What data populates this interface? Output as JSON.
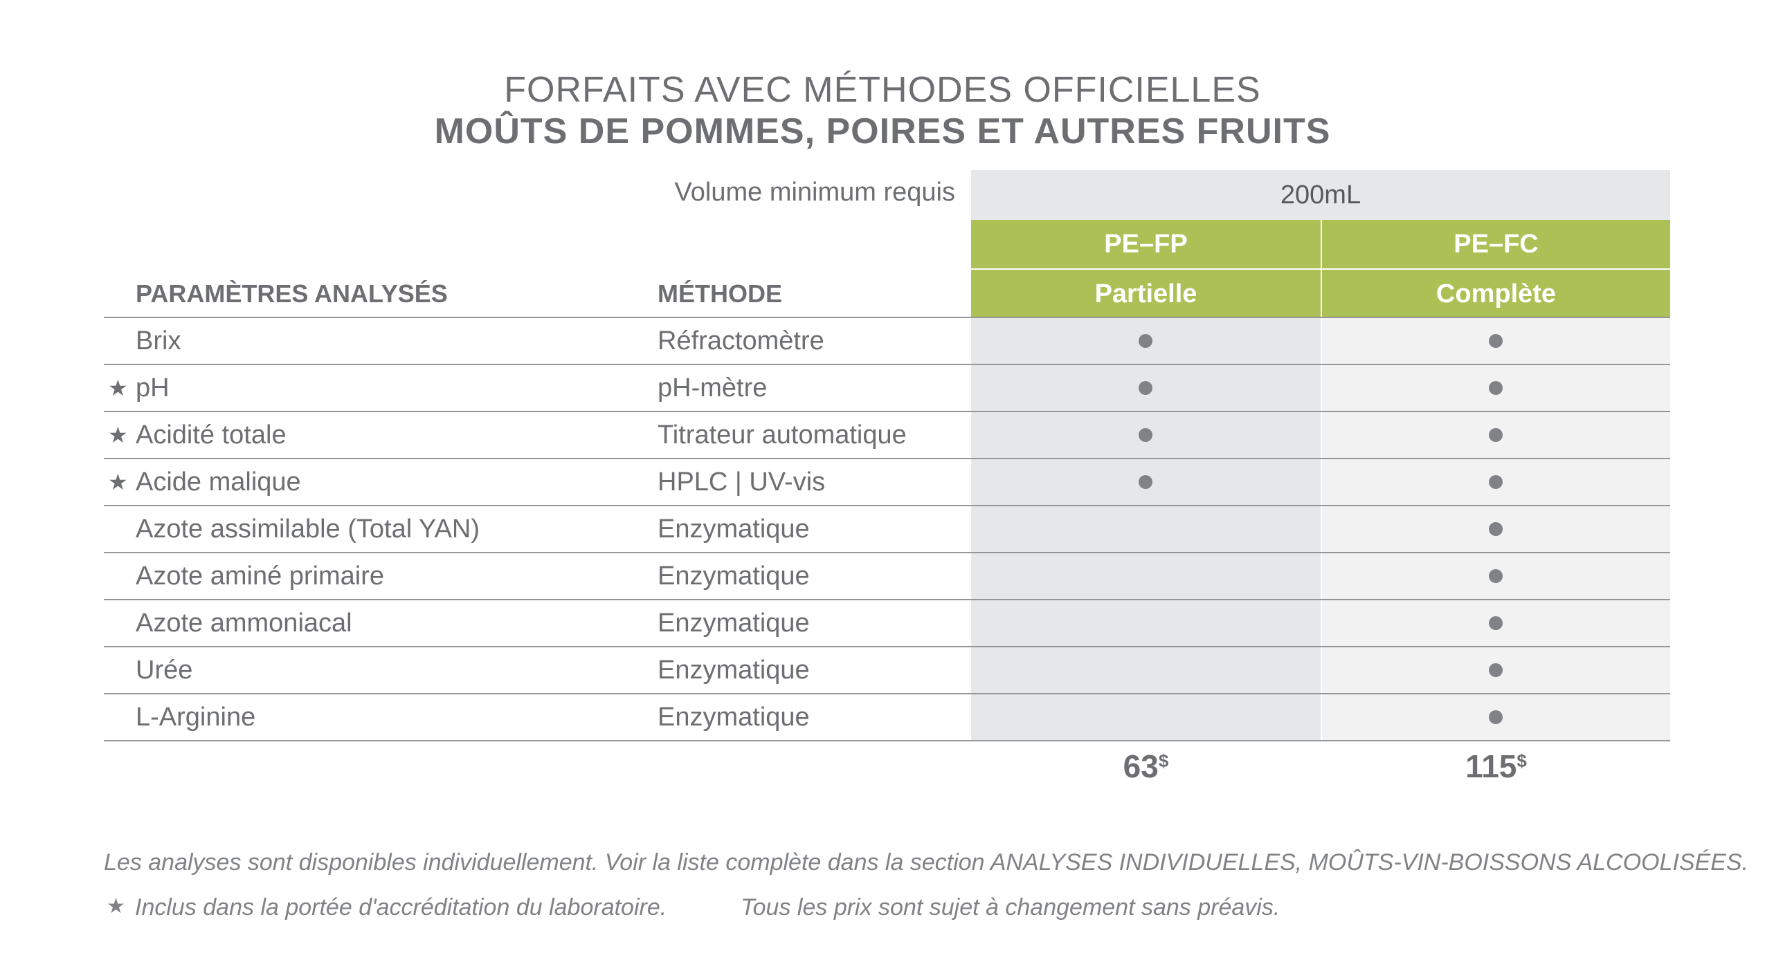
{
  "header": {
    "title_line1": "FORFAITS AVEC MÉTHODES OFFICIELLES",
    "title_line2": "MOÛTS DE POMMES, POIRES ET AUTRES FRUITS"
  },
  "volume": {
    "label": "Volume minimum requis",
    "value": "200mL"
  },
  "columns": {
    "param_header": "PARAMÈTRES ANALYSÉS",
    "method_header": "MÉTHODE"
  },
  "packages": [
    {
      "code": "PE–FP",
      "name": "Partielle",
      "price": "63",
      "currency": "$"
    },
    {
      "code": "PE–FC",
      "name": "Complète",
      "price": "115",
      "currency": "$"
    }
  ],
  "rows": [
    {
      "star": "",
      "param": "Brix",
      "method": "Réfractomètre",
      "in_partial": true,
      "in_complete": true
    },
    {
      "star": "★",
      "param": "pH",
      "method": "pH-mètre",
      "in_partial": true,
      "in_complete": true
    },
    {
      "star": "★",
      "param": "Acidité totale",
      "method": "Titrateur automatique",
      "in_partial": true,
      "in_complete": true
    },
    {
      "star": "★",
      "param": "Acide malique",
      "method": "HPLC | UV-vis",
      "in_partial": true,
      "in_complete": true
    },
    {
      "star": "",
      "param": "Azote assimilable (Total YAN)",
      "method": "Enzymatique",
      "in_partial": false,
      "in_complete": true
    },
    {
      "star": "",
      "param": "Azote aminé primaire",
      "method": "Enzymatique",
      "in_partial": false,
      "in_complete": true
    },
    {
      "star": "",
      "param": "Azote ammoniacal",
      "method": "Enzymatique",
      "in_partial": false,
      "in_complete": true
    },
    {
      "star": "",
      "param": "Urée",
      "method": "Enzymatique",
      "in_partial": false,
      "in_complete": true
    },
    {
      "star": "",
      "param": "L-Arginine",
      "method": "Enzymatique",
      "in_partial": false,
      "in_complete": true
    }
  ],
  "footer": {
    "note_individual": "Les analyses sont disponibles individuellement. Voir la liste complète dans la section ANALYSES INDIVIDUELLES, MOÛTS-VIN-BOISSONS ALCOOLISÉES.",
    "star_symbol": "★",
    "note_accreditation": "Inclus dans la portée d'accréditation du laboratoire.",
    "note_prices": "Tous les prix sont sujet à changement sans préavis."
  },
  "colors": {
    "accent_green": "#abc055",
    "text_gray": "#6d6e71",
    "shade_partial": "#e6e7e8",
    "shade_complete": "#f2f2f2"
  }
}
